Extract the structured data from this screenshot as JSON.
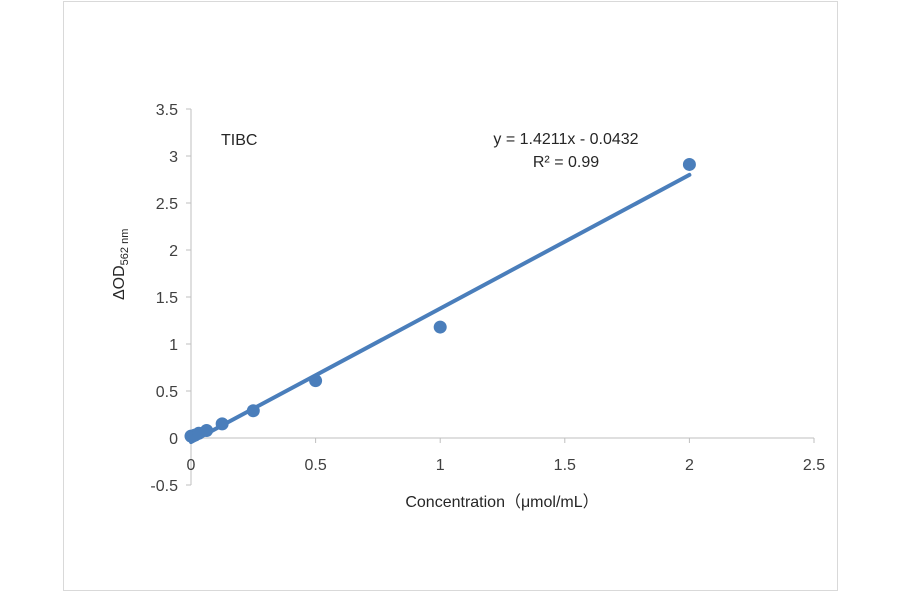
{
  "chart_data": {
    "type": "scatter",
    "title": "TIBC",
    "xlabel": "Concentration（μmol/mL）",
    "ylabel": "ΔOD",
    "ylabel_subscript": "562 nm",
    "xlim": [
      0,
      2.5
    ],
    "ylim": [
      -0.5,
      3.5
    ],
    "x_ticks": [
      "0",
      "0.5",
      "1",
      "1.5",
      "2",
      "2.5"
    ],
    "y_ticks": [
      "-0.5",
      "0",
      "0.5",
      "1",
      "1.5",
      "2",
      "2.5",
      "3",
      "3.5"
    ],
    "grid": false,
    "legend": "none",
    "series": [
      {
        "points": [
          {
            "x": 0,
            "y": 0.02
          },
          {
            "x": 0.0156,
            "y": 0.03
          },
          {
            "x": 0.03125,
            "y": 0.05
          },
          {
            "x": 0.0625,
            "y": 0.08
          },
          {
            "x": 0.125,
            "y": 0.15
          },
          {
            "x": 0.25,
            "y": 0.29
          },
          {
            "x": 0.5,
            "y": 0.61
          },
          {
            "x": 1,
            "y": 1.18
          },
          {
            "x": 2,
            "y": 2.91
          }
        ],
        "color": "#4a7ebb"
      }
    ],
    "trendline": {
      "slope": 1.4211,
      "intercept": -0.0432,
      "x_range": [
        0,
        2
      ],
      "color": "#4a7ebb"
    },
    "annotations": {
      "equation": "y = 1.4211x - 0.0432",
      "r_squared": "R² = 0.99"
    }
  }
}
